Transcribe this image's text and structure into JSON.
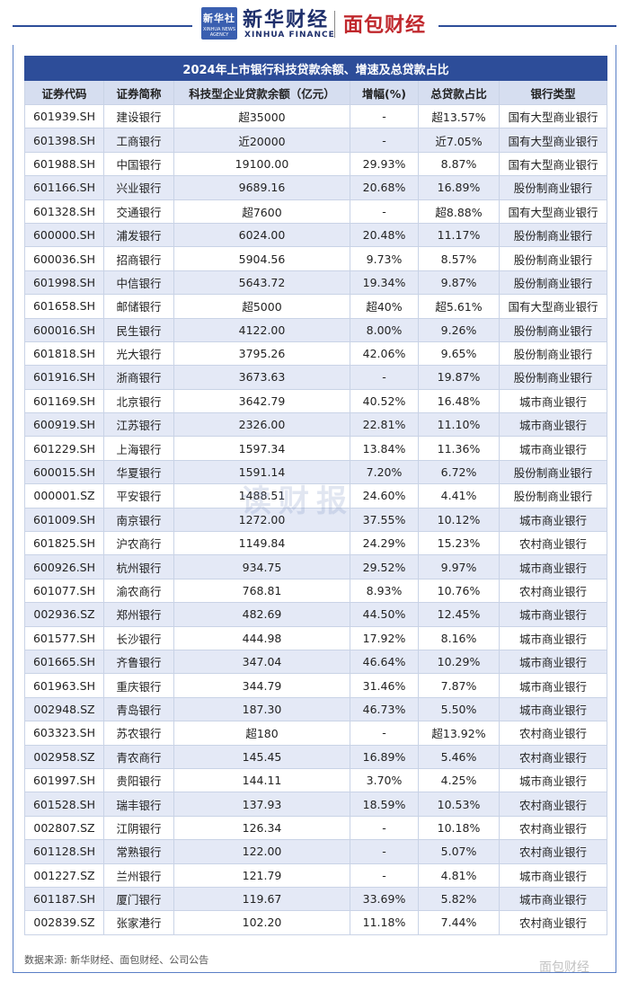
{
  "header": {
    "xinhua_logo_box": "新华社",
    "xinhua_logo_box_sub": "XINHUA NEWS AGENCY",
    "xinhua_cn": "新华财经",
    "xinhua_en": "XINHUA FINANCE",
    "mianbao_logo": "面包财经"
  },
  "watermark": "读财报",
  "weibo_mark": "面包财经",
  "footer": {
    "source": "数据来源: 新华财经、面包财经、公司公告"
  },
  "colors": {
    "title_bg": "#2d4d99",
    "header_bg": "#d6def0",
    "stripe": "#e4e9f6",
    "brand_red": "#c0282d"
  },
  "chart_data": {
    "type": "table",
    "title": "2024年上市银行科技贷款余额、增速及总贷款占比",
    "columns": [
      "证券代码",
      "证券简称",
      "科技型企业贷款余额（亿元）",
      "增幅(%)",
      "总贷款占比",
      "银行类型"
    ],
    "rows": [
      [
        "601939.SH",
        "建设银行",
        "超35000",
        "-",
        "超13.57%",
        "国有大型商业银行"
      ],
      [
        "601398.SH",
        "工商银行",
        "近20000",
        "-",
        "近7.05%",
        "国有大型商业银行"
      ],
      [
        "601988.SH",
        "中国银行",
        "19100.00",
        "29.93%",
        "8.87%",
        "国有大型商业银行"
      ],
      [
        "601166.SH",
        "兴业银行",
        "9689.16",
        "20.68%",
        "16.89%",
        "股份制商业银行"
      ],
      [
        "601328.SH",
        "交通银行",
        "超7600",
        "-",
        "超8.88%",
        "国有大型商业银行"
      ],
      [
        "600000.SH",
        "浦发银行",
        "6024.00",
        "20.48%",
        "11.17%",
        "股份制商业银行"
      ],
      [
        "600036.SH",
        "招商银行",
        "5904.56",
        "9.73%",
        "8.57%",
        "股份制商业银行"
      ],
      [
        "601998.SH",
        "中信银行",
        "5643.72",
        "19.34%",
        "9.87%",
        "股份制商业银行"
      ],
      [
        "601658.SH",
        "邮储银行",
        "超5000",
        "超40%",
        "超5.61%",
        "国有大型商业银行"
      ],
      [
        "600016.SH",
        "民生银行",
        "4122.00",
        "8.00%",
        "9.26%",
        "股份制商业银行"
      ],
      [
        "601818.SH",
        "光大银行",
        "3795.26",
        "42.06%",
        "9.65%",
        "股份制商业银行"
      ],
      [
        "601916.SH",
        "浙商银行",
        "3673.63",
        "-",
        "19.87%",
        "股份制商业银行"
      ],
      [
        "601169.SH",
        "北京银行",
        "3642.79",
        "40.52%",
        "16.48%",
        "城市商业银行"
      ],
      [
        "600919.SH",
        "江苏银行",
        "2326.00",
        "22.81%",
        "11.10%",
        "城市商业银行"
      ],
      [
        "601229.SH",
        "上海银行",
        "1597.34",
        "13.84%",
        "11.36%",
        "城市商业银行"
      ],
      [
        "600015.SH",
        "华夏银行",
        "1591.14",
        "7.20%",
        "6.72%",
        "股份制商业银行"
      ],
      [
        "000001.SZ",
        "平安银行",
        "1488.51",
        "24.60%",
        "4.41%",
        "股份制商业银行"
      ],
      [
        "601009.SH",
        "南京银行",
        "1272.00",
        "37.55%",
        "10.12%",
        "城市商业银行"
      ],
      [
        "601825.SH",
        "沪农商行",
        "1149.84",
        "24.29%",
        "15.23%",
        "农村商业银行"
      ],
      [
        "600926.SH",
        "杭州银行",
        "934.75",
        "29.52%",
        "9.97%",
        "城市商业银行"
      ],
      [
        "601077.SH",
        "渝农商行",
        "768.81",
        "8.93%",
        "10.76%",
        "农村商业银行"
      ],
      [
        "002936.SZ",
        "郑州银行",
        "482.69",
        "44.50%",
        "12.45%",
        "城市商业银行"
      ],
      [
        "601577.SH",
        "长沙银行",
        "444.98",
        "17.92%",
        "8.16%",
        "城市商业银行"
      ],
      [
        "601665.SH",
        "齐鲁银行",
        "347.04",
        "46.64%",
        "10.29%",
        "城市商业银行"
      ],
      [
        "601963.SH",
        "重庆银行",
        "344.79",
        "31.46%",
        "7.87%",
        "城市商业银行"
      ],
      [
        "002948.SZ",
        "青岛银行",
        "187.30",
        "46.73%",
        "5.50%",
        "城市商业银行"
      ],
      [
        "603323.SH",
        "苏农银行",
        "超180",
        "-",
        "超13.92%",
        "农村商业银行"
      ],
      [
        "002958.SZ",
        "青农商行",
        "145.45",
        "16.89%",
        "5.46%",
        "农村商业银行"
      ],
      [
        "601997.SH",
        "贵阳银行",
        "144.11",
        "3.70%",
        "4.25%",
        "城市商业银行"
      ],
      [
        "601528.SH",
        "瑞丰银行",
        "137.93",
        "18.59%",
        "10.53%",
        "农村商业银行"
      ],
      [
        "002807.SZ",
        "江阴银行",
        "126.34",
        "-",
        "10.18%",
        "农村商业银行"
      ],
      [
        "601128.SH",
        "常熟银行",
        "122.00",
        "-",
        "5.07%",
        "农村商业银行"
      ],
      [
        "001227.SZ",
        "兰州银行",
        "121.79",
        "-",
        "4.81%",
        "城市商业银行"
      ],
      [
        "601187.SH",
        "厦门银行",
        "119.67",
        "33.69%",
        "5.82%",
        "城市商业银行"
      ],
      [
        "002839.SZ",
        "张家港行",
        "102.20",
        "11.18%",
        "7.44%",
        "农村商业银行"
      ]
    ]
  }
}
